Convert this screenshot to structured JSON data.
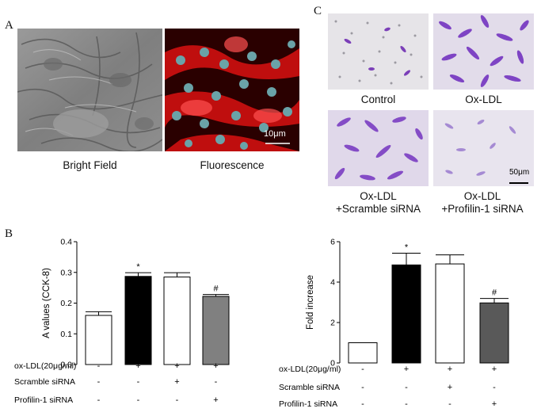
{
  "panel_a": {
    "letter": "A",
    "captions": [
      "Bright Field",
      "Fluorescence"
    ],
    "scale_bar": "10μm"
  },
  "panel_b": {
    "letter": "B"
  },
  "panel_c": {
    "letter": "C",
    "captions": [
      "Control",
      "Ox-LDL",
      "Ox-LDL",
      "+Scramble siRNA",
      "Ox-LDL",
      "+Profilin-1 siRNA"
    ],
    "scale_bar": "50μm"
  },
  "chart_data": [
    {
      "type": "bar",
      "ylabel": "A values (CCK-8)",
      "ylim": [
        0,
        0.4
      ],
      "yticks": [
        "0.0",
        "0.1",
        "0.2",
        "0.3",
        "0.4"
      ],
      "values": [
        0.16,
        0.287,
        0.285,
        0.222
      ],
      "errors": [
        0.012,
        0.012,
        0.014,
        0.006
      ],
      "annotations": [
        "",
        "*",
        "",
        "#"
      ],
      "colors": [
        "#ffffff",
        "#000000",
        "#ffffff",
        "#808080"
      ],
      "conditions": [
        {
          "label": "ox-LDL(20μg/ml)",
          "marks": [
            "-",
            "+",
            "+",
            "+"
          ]
        },
        {
          "label": "Scramble siRNA",
          "marks": [
            "-",
            "-",
            "+",
            "-"
          ]
        },
        {
          "label": "Profilin-1 siRNA",
          "marks": [
            "-",
            "-",
            "-",
            "+"
          ]
        }
      ]
    },
    {
      "type": "bar",
      "ylabel": "Fold increase",
      "ylim": [
        0,
        6
      ],
      "yticks": [
        "0",
        "2",
        "4",
        "6"
      ],
      "values": [
        1.0,
        4.85,
        4.9,
        2.97
      ],
      "errors": [
        0,
        0.58,
        0.45,
        0.22
      ],
      "annotations": [
        "",
        "*",
        "",
        "#"
      ],
      "colors": [
        "#ffffff",
        "#000000",
        "#ffffff",
        "#595959"
      ],
      "conditions": [
        {
          "label": "ox-LDL(20μg/ml)",
          "marks": [
            "-",
            "+",
            "+",
            "+"
          ]
        },
        {
          "label": "Scramble siRNA",
          "marks": [
            "-",
            "-",
            "+",
            "-"
          ]
        },
        {
          "label": "Profilin-1 siRNA",
          "marks": [
            "-",
            "-",
            "-",
            "+"
          ]
        }
      ]
    }
  ]
}
